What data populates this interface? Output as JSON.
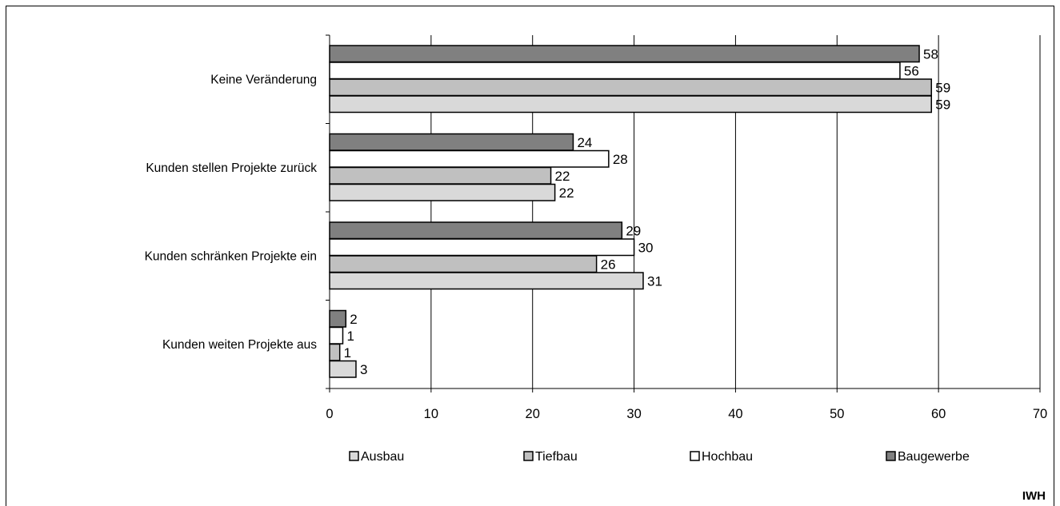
{
  "chart_data": {
    "type": "bar",
    "orientation": "horizontal",
    "categories": [
      "Keine Veränderung",
      "Kunden stellen Projekte zurück",
      "Kunden schränken Projekte ein",
      "Kunden weiten Projekte aus"
    ],
    "series": [
      {
        "name": "Baugewerbe",
        "color": "#808080",
        "values": [
          58,
          24,
          29,
          2
        ],
        "plotted": [
          58.1,
          24.0,
          28.8,
          1.6
        ]
      },
      {
        "name": "Hochbau",
        "color": "#ffffff",
        "values": [
          56,
          28,
          30,
          1
        ],
        "plotted": [
          56.2,
          27.5,
          30.0,
          1.3
        ]
      },
      {
        "name": "Tiefbau",
        "color": "#c0c0c0",
        "values": [
          59,
          22,
          26,
          1
        ],
        "plotted": [
          59.3,
          21.8,
          26.3,
          1.0
        ]
      },
      {
        "name": "Ausbau",
        "color": "#d9d9d9",
        "values": [
          59,
          22,
          31,
          3
        ],
        "plotted": [
          59.3,
          22.2,
          30.9,
          2.6
        ]
      }
    ],
    "legend_order": [
      "Ausbau",
      "Tiefbau",
      "Hochbau",
      "Baugewerbe"
    ],
    "xlim": [
      0,
      70
    ],
    "xticks": [
      0,
      10,
      20,
      30,
      40,
      50,
      60,
      70
    ],
    "grid": "vertical",
    "legend_position": "bottom",
    "xlabel": "",
    "ylabel": ""
  },
  "credit": "IWH"
}
